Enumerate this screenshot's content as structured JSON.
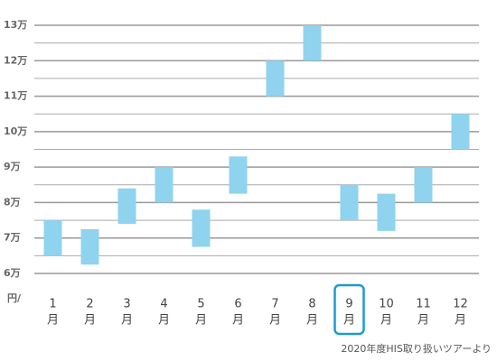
{
  "chart_data": {
    "type": "range",
    "unit_label": "円/",
    "categories": [
      "1",
      "2",
      "3",
      "4",
      "5",
      "6",
      "7",
      "8",
      "9",
      "10",
      "11",
      "12"
    ],
    "category_suffix": "月",
    "highlighted_category": "9",
    "low": [
      6.5,
      6.25,
      7.4,
      8.0,
      6.75,
      8.25,
      11.0,
      12.0,
      7.5,
      7.2,
      8.0,
      9.5
    ],
    "high": [
      7.5,
      7.25,
      8.4,
      9.0,
      7.8,
      9.3,
      12.0,
      13.0,
      8.5,
      8.25,
      9.0,
      10.5
    ],
    "color": "#8fd3ef",
    "highlight_color": "#1a9bd0",
    "ylim": [
      6,
      13
    ],
    "yticks": [
      {
        "value": 6,
        "label": "6万"
      },
      {
        "value": 7,
        "label": "7万"
      },
      {
        "value": 8,
        "label": "8万"
      },
      {
        "value": 9,
        "label": "9万"
      },
      {
        "value": 10,
        "label": "10万"
      },
      {
        "value": 11,
        "label": "11万"
      },
      {
        "value": 12,
        "label": "12万"
      },
      {
        "value": 13,
        "label": "13万"
      }
    ],
    "minor_yticks": [
      6.5,
      7.5,
      8.5,
      9.5,
      10.5,
      11.5,
      12.5
    ],
    "grid": true,
    "footnote": "2020年度HIS取り扱いツアーより"
  }
}
